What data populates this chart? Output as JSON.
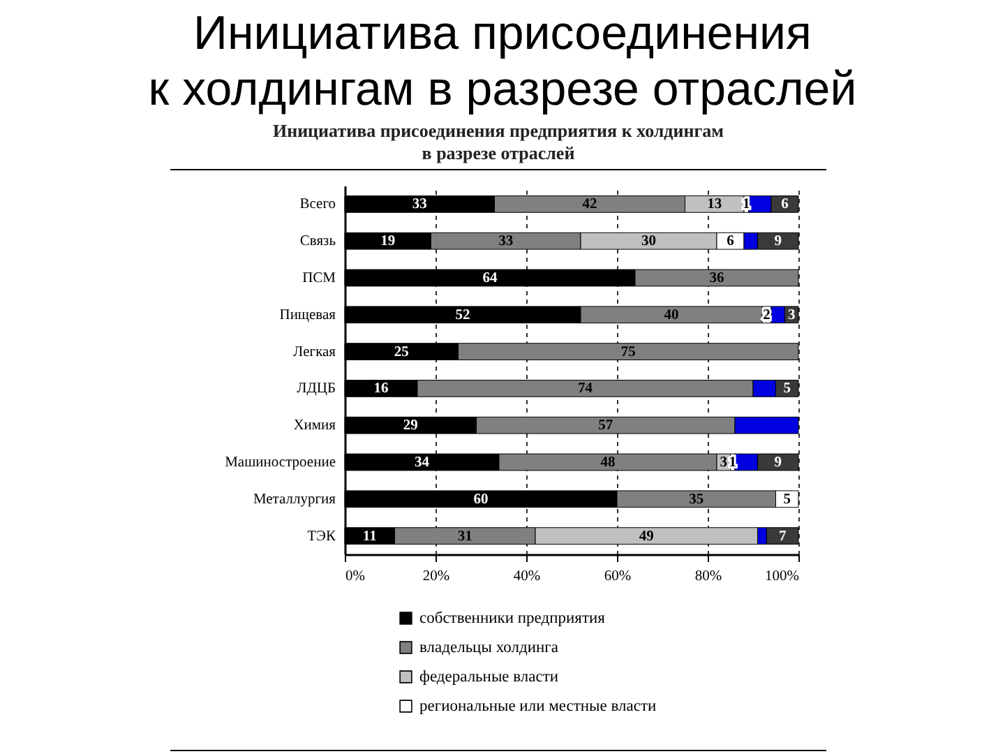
{
  "chart_data": {
    "type": "bar",
    "orientation": "horizontal",
    "stacked": true,
    "title": "Инициатива присоединения к холдингам в разрезе отраслей",
    "subtitle": "Инициатива присоединения предприятия к холдингам в разрезе отраслей",
    "categories": [
      "Всего",
      "Связь",
      "ПСМ",
      "Пищевая",
      "Легкая",
      "ЛДЦБ",
      "Химия",
      "Машиностроение",
      "Металлургия",
      "ТЭК"
    ],
    "series": [
      {
        "name": "собственники предприятия",
        "color": "#000000",
        "values": [
          33,
          19,
          64,
          52,
          25,
          16,
          29,
          34,
          60,
          11
        ],
        "value_labels": [
          "33",
          "19",
          "64",
          "52",
          "25",
          "16",
          "29",
          "34",
          "60",
          "11"
        ]
      },
      {
        "name": "владельцы холдинга",
        "color": "#808080",
        "values": [
          42,
          33,
          36,
          40,
          75,
          74,
          57,
          48,
          35,
          31
        ],
        "value_labels": [
          "42",
          "33",
          "36",
          "40",
          "75",
          "74",
          "57",
          "48",
          "35",
          "31"
        ]
      },
      {
        "name": "федеральные власти",
        "color": "#c0c0c0",
        "values": [
          13,
          30,
          null,
          null,
          null,
          null,
          null,
          3,
          null,
          49
        ],
        "value_labels": [
          "13",
          "30",
          null,
          null,
          null,
          null,
          null,
          "3",
          null,
          "49"
        ]
      },
      {
        "name": "региональные или местные власти",
        "color": "#ffffff",
        "values": [
          1,
          6,
          null,
          2,
          null,
          null,
          null,
          1,
          5,
          null
        ],
        "value_labels": [
          "1",
          "6",
          null,
          "2",
          null,
          null,
          null,
          "1",
          "5",
          null
        ]
      },
      {
        "color": "#0000e0",
        "values": [
          5,
          3,
          null,
          3,
          null,
          5,
          14,
          5,
          null,
          2
        ]
      },
      {
        "color": "#3a3a3a",
        "values": [
          6,
          9,
          null,
          3,
          null,
          5,
          null,
          9,
          null,
          7
        ],
        "value_labels": [
          "6",
          "9",
          null,
          "3",
          null,
          "5",
          null,
          "9",
          null,
          "7"
        ]
      }
    ],
    "xlim": [
      0,
      100
    ],
    "xticks": [
      {
        "value": 0,
        "label": "0%"
      },
      {
        "value": 20,
        "label": "20%"
      },
      {
        "value": 40,
        "label": "40%"
      },
      {
        "value": 60,
        "label": "60%"
      },
      {
        "value": 80,
        "label": "80%"
      },
      {
        "value": 100,
        "label": "100%"
      }
    ],
    "grid": "x",
    "legend": "bottom"
  }
}
